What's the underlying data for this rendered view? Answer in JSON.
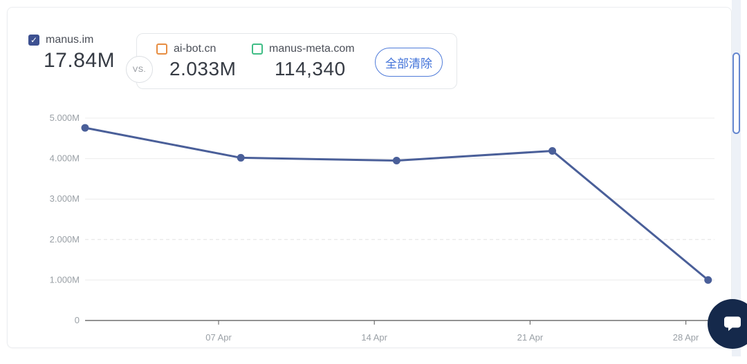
{
  "header": {
    "primary": {
      "label": "manus.im",
      "value": "17.84M",
      "checked": true,
      "checkbox_color": "#3d5191"
    },
    "vs_label": "VS.",
    "competitors": [
      {
        "label": "ai-bot.cn",
        "value": "2.033M",
        "checked": false,
        "checkbox_color": "#e78d41"
      },
      {
        "label": "manus-meta.com",
        "value": "114,340",
        "checked": false,
        "checkbox_color": "#3fbd85"
      }
    ],
    "clear_button_label": "全部清除",
    "accent_color": "#4273d9"
  },
  "chart_data": {
    "type": "line",
    "title": "",
    "xlabel": "",
    "ylabel": "",
    "y_unit": "M",
    "ylim": [
      0,
      5
    ],
    "xlim_days": [
      0,
      28.3
    ],
    "grid": true,
    "legend": "none",
    "series": [
      {
        "name": "manus.im",
        "color": "#4a5f99",
        "points": [
          {
            "day": 0,
            "value": 4.76
          },
          {
            "day": 7,
            "value": 4.02
          },
          {
            "day": 14,
            "value": 3.95
          },
          {
            "day": 21,
            "value": 4.19
          },
          {
            "day": 28,
            "value": 1.0
          }
        ]
      }
    ],
    "x_ticks": [
      {
        "day": 6,
        "label": "07 Apr"
      },
      {
        "day": 13,
        "label": "14 Apr"
      },
      {
        "day": 20,
        "label": "21 Apr"
      },
      {
        "day": 27,
        "label": "28 Apr"
      }
    ],
    "y_ticks": [
      {
        "value": 5,
        "label": "5.000M"
      },
      {
        "value": 4,
        "label": "4.000M"
      },
      {
        "value": 3,
        "label": "3.000M"
      },
      {
        "value": 2,
        "label": "2.000M",
        "dashed": true
      },
      {
        "value": 1,
        "label": "1.000M"
      },
      {
        "value": 0,
        "label": "0"
      }
    ]
  },
  "scrollbar": {
    "present": true
  },
  "chat_widget": {
    "icon": "chat-bubble-icon",
    "color": "#15294b"
  }
}
